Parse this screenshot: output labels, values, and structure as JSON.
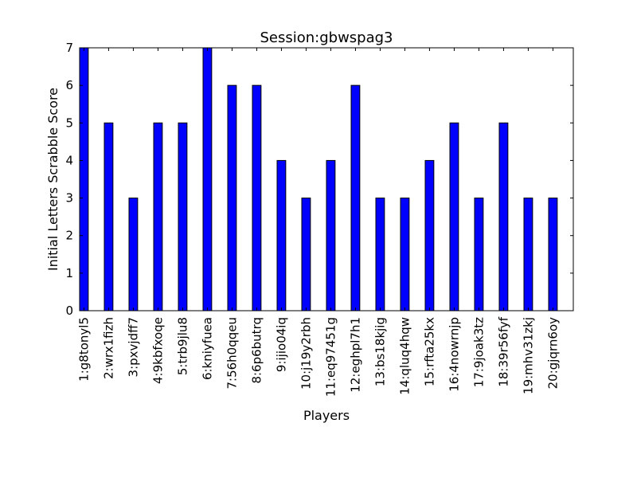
{
  "chart_data": {
    "type": "bar",
    "title": "Session:gbwspag3",
    "xlabel": "Players",
    "ylabel": "Initial Letters Scrabble Score",
    "categories": [
      "1:g8tonyl5",
      "2:wrx1fizh",
      "3:pxvjdff7",
      "4:9kbfxoqe",
      "5:trb9jlu8",
      "6:kniyfuea",
      "7:56h0qqeu",
      "8:6p6butrq",
      "9:ijio04iq",
      "10:j19y2rbh",
      "11:eq97451g",
      "12:eghpl7h1",
      "13:bs18kjig",
      "14:qluq4hqw",
      "15:rfta25kx",
      "16:4nowrnjp",
      "17:9joak3tz",
      "18:39r56fyf",
      "19:mhv31zkj",
      "20:gjqrn6oy"
    ],
    "values": [
      7,
      5,
      3,
      5,
      5,
      7,
      6,
      6,
      4,
      3,
      4,
      6,
      3,
      3,
      4,
      5,
      3,
      5,
      3,
      3
    ],
    "ylim": [
      0,
      7
    ],
    "yticks": [
      "0",
      "1",
      "2",
      "3",
      "4",
      "5",
      "6",
      "7"
    ],
    "grid": false,
    "legend": "none",
    "bar_color": "#0000ff",
    "edge_color": "#000000"
  }
}
